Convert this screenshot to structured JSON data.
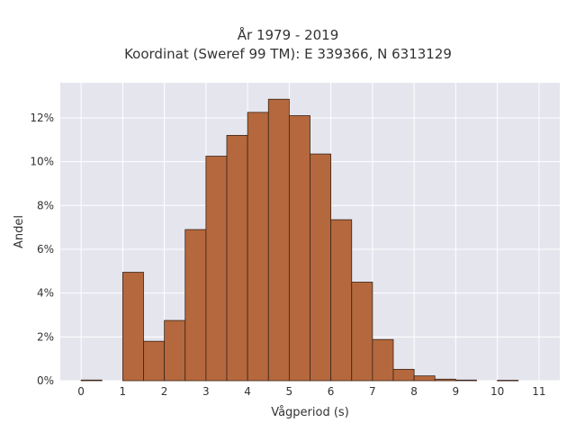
{
  "chart_data": {
    "type": "bar",
    "title": "År 1979 - 2019",
    "subtitle": "Koordinat (Sweref 99 TM): E 339366, N 6313129",
    "xlabel": "Vågperiod (s)",
    "ylabel": "Andel",
    "xlim": [
      -0.5,
      11.5
    ],
    "ylim": [
      0,
      13.6
    ],
    "x_ticks": [
      "0",
      "1",
      "2",
      "3",
      "4",
      "5",
      "6",
      "7",
      "8",
      "9",
      "10",
      "11"
    ],
    "y_ticks": [
      "0%",
      "2%",
      "4%",
      "6%",
      "8%",
      "10%",
      "12%"
    ],
    "bin_width": 0.5,
    "bins": [
      {
        "x0": 0.0,
        "value": 0.03
      },
      {
        "x0": 1.0,
        "value": 4.95
      },
      {
        "x0": 1.5,
        "value": 1.8
      },
      {
        "x0": 2.0,
        "value": 2.75
      },
      {
        "x0": 2.5,
        "value": 6.9
      },
      {
        "x0": 3.0,
        "value": 10.25
      },
      {
        "x0": 3.5,
        "value": 11.2
      },
      {
        "x0": 4.0,
        "value": 12.25
      },
      {
        "x0": 4.5,
        "value": 12.85
      },
      {
        "x0": 5.0,
        "value": 12.1
      },
      {
        "x0": 5.5,
        "value": 10.35
      },
      {
        "x0": 6.0,
        "value": 7.35
      },
      {
        "x0": 6.5,
        "value": 4.5
      },
      {
        "x0": 7.0,
        "value": 1.88
      },
      {
        "x0": 7.5,
        "value": 0.52
      },
      {
        "x0": 8.0,
        "value": 0.22
      },
      {
        "x0": 8.5,
        "value": 0.07
      },
      {
        "x0": 9.0,
        "value": 0.03
      },
      {
        "x0": 10.0,
        "value": 0.02
      }
    ],
    "grid": true,
    "colors": {
      "bar_fill": "#b5683d",
      "bar_edge": "#3a2418",
      "plot_bg": "#e5e5ee",
      "grid": "#ffffff"
    }
  }
}
